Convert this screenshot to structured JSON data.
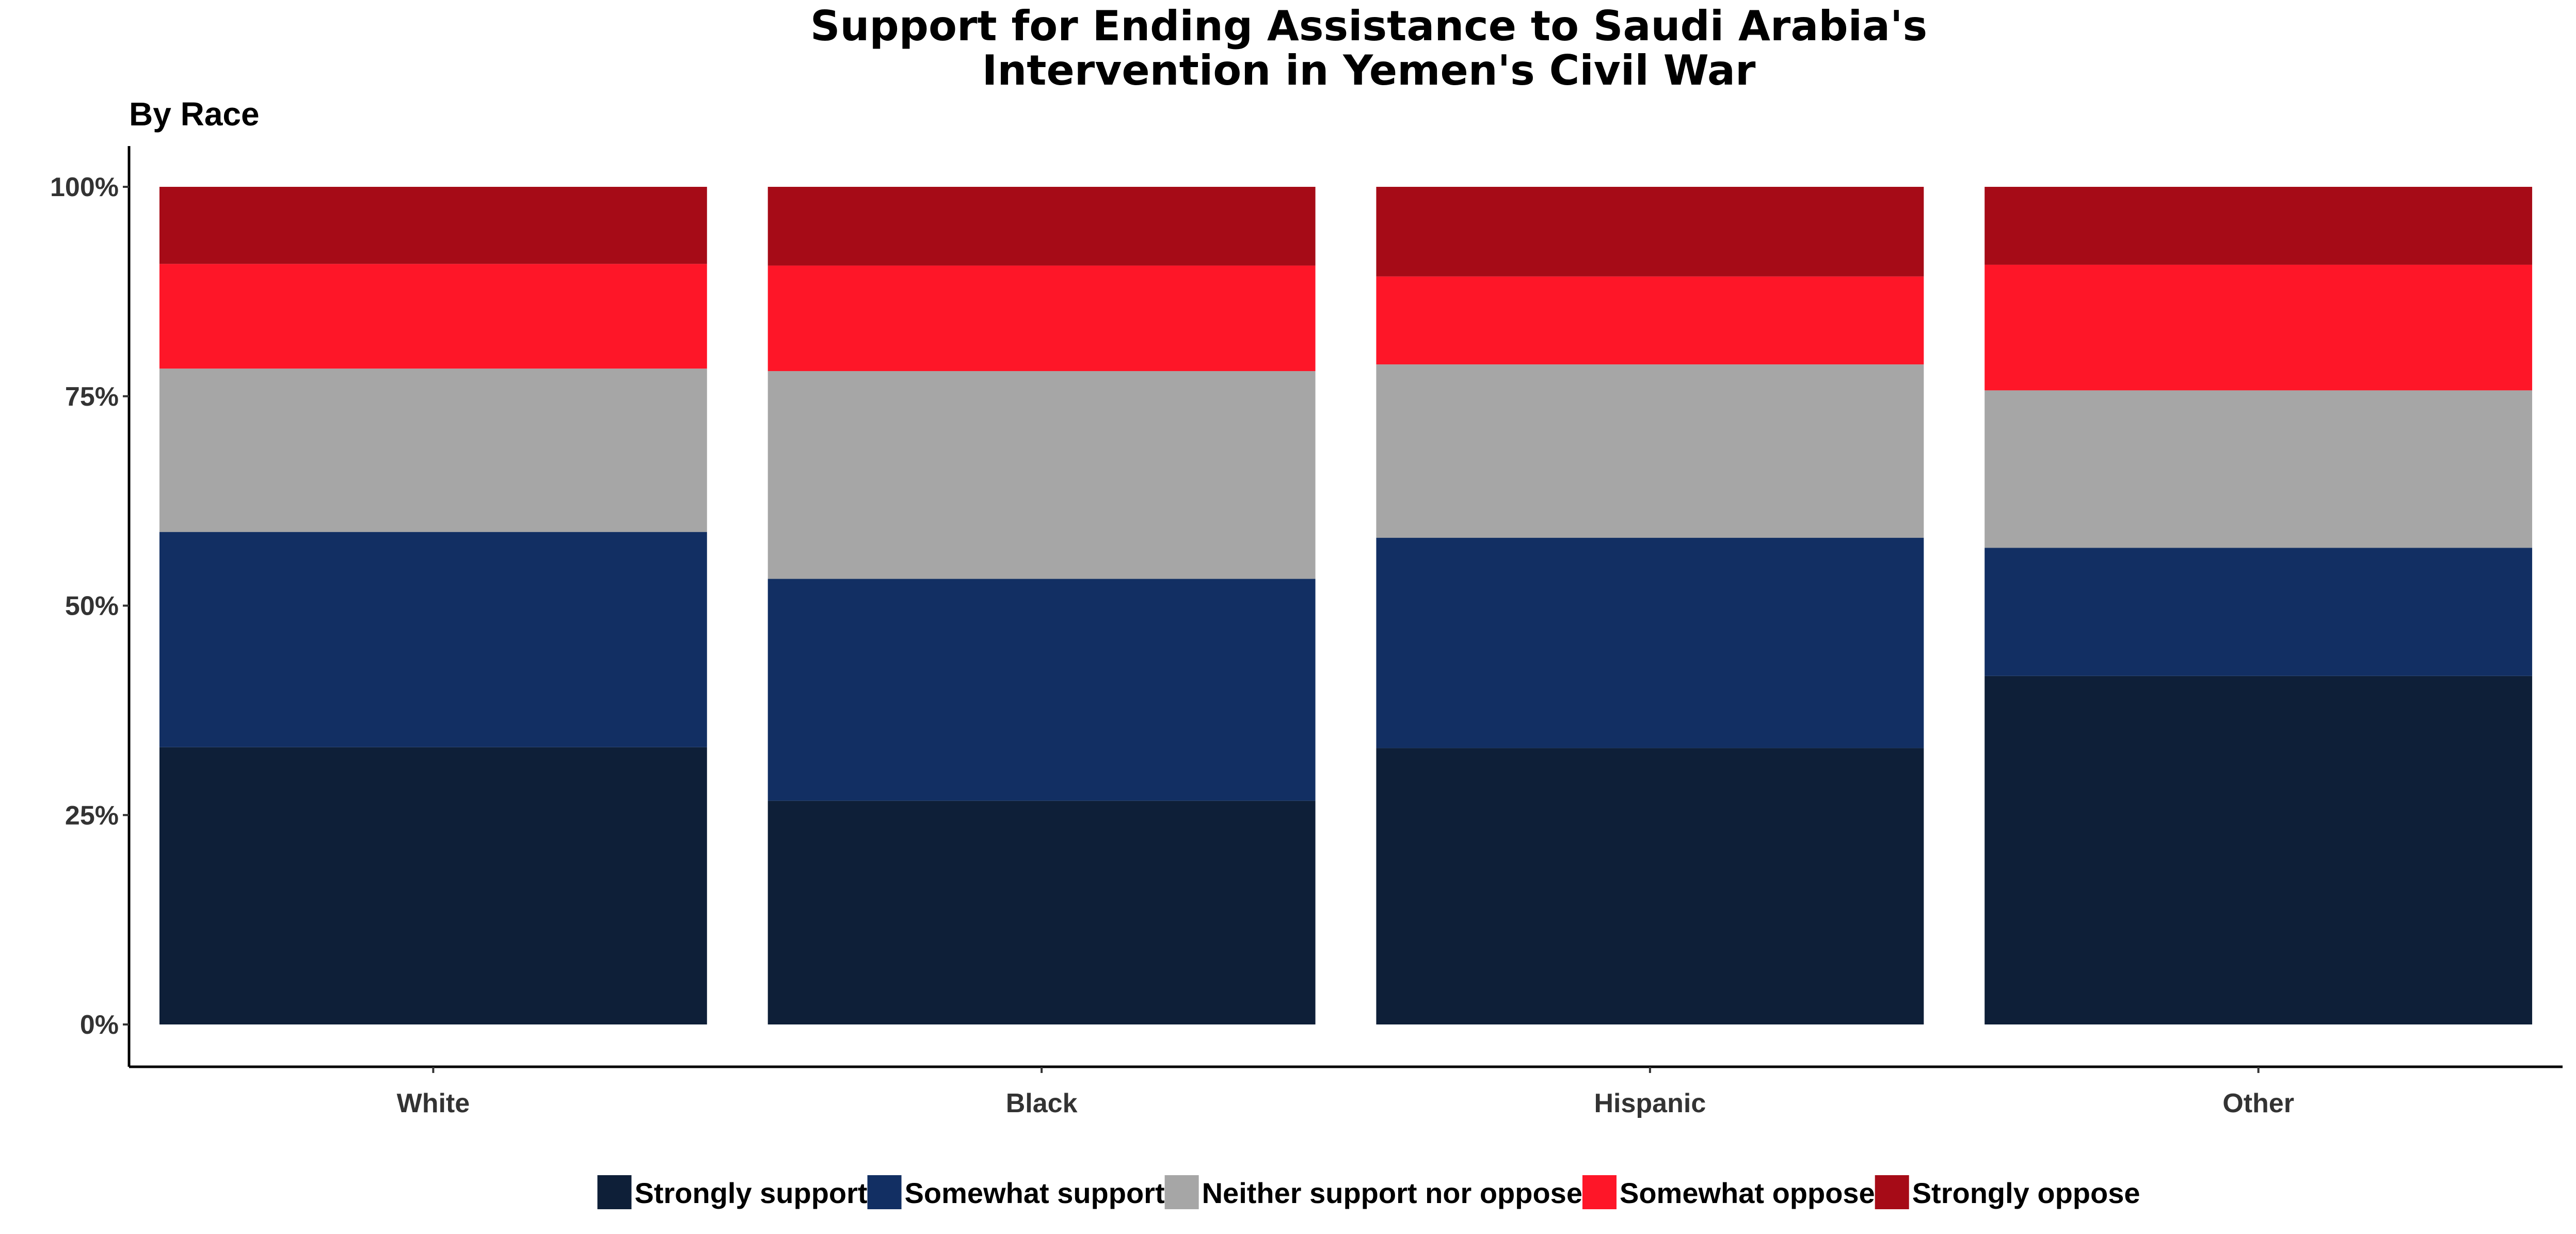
{
  "chart_data": {
    "type": "bar",
    "stacked": true,
    "percent": true,
    "title": "Support for Ending Assistance to Saudi Arabia's Intervention in Yemen's Civil War",
    "title_lines": [
      "Support for Ending Assistance to Saudi Arabia's",
      "Intervention in Yemen's Civil War"
    ],
    "subtitle": "By Race",
    "xlabel": "",
    "ylabel": "",
    "ylim": [
      0,
      100
    ],
    "y_ticks": [
      "0%",
      "25%",
      "50%",
      "75%",
      "100%"
    ],
    "categories": [
      "White",
      "Black",
      "Hispanic",
      "Other"
    ],
    "series": [
      {
        "name": "Strongly support",
        "color": "#0e1f38",
        "values": [
          33.1,
          26.7,
          33.0,
          41.6
        ]
      },
      {
        "name": "Somewhat support",
        "color": "#122f63",
        "values": [
          25.7,
          26.5,
          25.1,
          15.3
        ]
      },
      {
        "name": "Neither support nor oppose",
        "color": "#a6a6a6",
        "values": [
          19.5,
          24.8,
          20.7,
          18.8
        ]
      },
      {
        "name": "Somewhat oppose",
        "color": "#fe1628",
        "values": [
          12.5,
          12.6,
          10.5,
          15.0
        ]
      },
      {
        "name": "Strongly oppose",
        "color": "#a60b17",
        "values": [
          9.2,
          9.4,
          10.7,
          9.3
        ]
      }
    ],
    "grid": false,
    "legend_position": "bottom"
  }
}
